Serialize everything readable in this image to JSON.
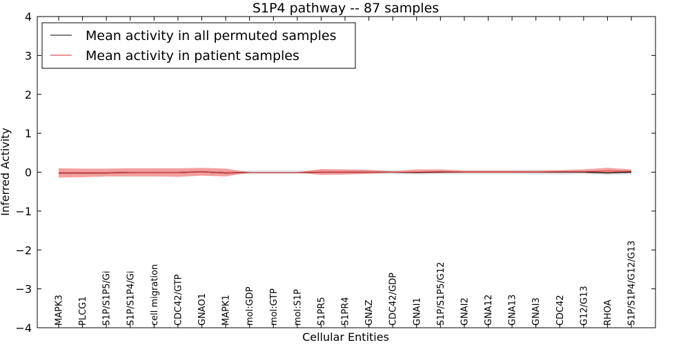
{
  "chart_data": {
    "type": "line",
    "title": "S1P4 pathway -- 87 samples",
    "xlabel": "Cellular Entities",
    "ylabel": "Inferred Activity",
    "ylim": [
      -4,
      4
    ],
    "yticks": [
      -4,
      -3,
      -2,
      -1,
      0,
      1,
      2,
      3,
      4
    ],
    "ytick_labels": [
      "−4",
      "−3",
      "−2",
      "−1",
      "0",
      "1",
      "2",
      "3",
      "4"
    ],
    "grid": false,
    "legend_position": "top-left",
    "categories": [
      "MAPK3",
      "PLCG1",
      "S1P/S1P5/Gi",
      "S1P/S1P4/Gi",
      "cell migration",
      "CDC42/GTP",
      "GNAO1",
      "MAPK1",
      "mol:GDP",
      "mol:GTP",
      "mol:S1P",
      "S1PR5",
      "S1PR4",
      "GNAZ",
      "CDC42/GDP",
      "GNAI1",
      "S1P/S1P5/G12",
      "GNAI2",
      "GNA12",
      "GNA13",
      "GNAI3",
      "CDC42",
      "G12/G13",
      "RHOA",
      "S1P/S1P4/G12/G13"
    ],
    "series": [
      {
        "name": "Mean activity in all permuted samples",
        "color": "#000000",
        "band_color": "#cccccc",
        "values": [
          -0.02,
          -0.02,
          -0.02,
          -0.01,
          -0.01,
          -0.01,
          0.01,
          -0.02,
          -0.01,
          -0.01,
          -0.01,
          0.0,
          0.0,
          0.0,
          0.0,
          -0.01,
          0.0,
          0.0,
          0.0,
          0.0,
          0.0,
          0.0,
          0.0,
          -0.02,
          0.0
        ],
        "lower": [
          -0.06,
          -0.06,
          -0.06,
          -0.05,
          -0.05,
          -0.05,
          -0.04,
          -0.06,
          -0.05,
          -0.05,
          -0.05,
          -0.05,
          -0.05,
          -0.05,
          -0.05,
          -0.06,
          -0.05,
          -0.05,
          -0.05,
          -0.05,
          -0.06,
          -0.06,
          -0.05,
          -0.07,
          -0.06
        ],
        "upper": [
          0.03,
          0.03,
          0.03,
          0.04,
          0.04,
          0.04,
          0.05,
          0.03,
          0.04,
          0.04,
          0.04,
          0.05,
          0.05,
          0.05,
          0.05,
          0.04,
          0.05,
          0.05,
          0.05,
          0.05,
          0.05,
          0.05,
          0.05,
          0.04,
          0.05
        ]
      },
      {
        "name": "Mean activity in patient samples",
        "color": "#d62728",
        "band_color": "#f08080",
        "values": [
          -0.02,
          -0.02,
          -0.02,
          -0.01,
          -0.01,
          -0.01,
          0.01,
          -0.02,
          -0.01,
          -0.01,
          -0.01,
          0.0,
          0.0,
          0.0,
          0.0,
          0.0,
          0.01,
          0.0,
          0.0,
          0.0,
          0.0,
          0.01,
          0.01,
          0.03,
          0.02
        ],
        "lower": [
          -0.14,
          -0.13,
          -0.11,
          -0.11,
          -0.11,
          -0.12,
          -0.09,
          -0.11,
          -0.01,
          -0.01,
          -0.01,
          -0.07,
          -0.06,
          -0.04,
          -0.01,
          -0.02,
          -0.02,
          -0.01,
          -0.01,
          -0.01,
          -0.01,
          -0.01,
          0.0,
          -0.02,
          -0.01
        ],
        "upper": [
          0.1,
          0.09,
          0.09,
          0.1,
          0.1,
          0.1,
          0.11,
          0.09,
          0.0,
          0.0,
          0.0,
          0.08,
          0.07,
          0.06,
          0.02,
          0.07,
          0.07,
          0.04,
          0.04,
          0.04,
          0.04,
          0.05,
          0.07,
          0.11,
          0.07
        ]
      }
    ]
  }
}
